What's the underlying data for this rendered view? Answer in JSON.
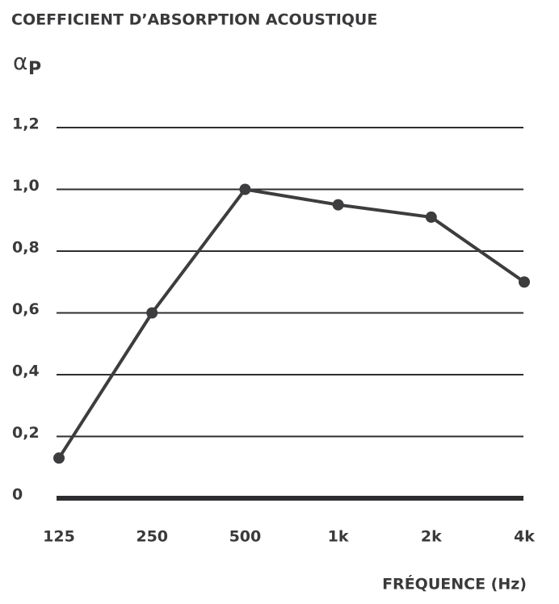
{
  "chart_data": {
    "type": "line",
    "title": "COEFFICIENT D’ABSORPTION ACOUSTIQUE",
    "ylabel": {
      "symbol": "α",
      "subscript": "P"
    },
    "xlabel": "FRÉQUENCE (Hz)",
    "categories": [
      "125",
      "250",
      "500",
      "1k",
      "2k",
      "4k"
    ],
    "series": [
      {
        "color": "#3d3d3f",
        "values": [
          0.13,
          0.6,
          1.0,
          0.95,
          0.91,
          0.7
        ]
      }
    ],
    "ylim": [
      0,
      1.2
    ],
    "yticks": [
      0,
      {
        "value": 0.2,
        "label": "0,2"
      },
      {
        "value": 0.4,
        "label": "0,4"
      },
      {
        "value": 0.6,
        "label": "0,6"
      },
      {
        "value": 0.8,
        "label": "0,8"
      },
      {
        "value": 1.0,
        "label": "1,0"
      },
      {
        "value": 1.2,
        "label": "1,2"
      }
    ],
    "grid": true
  }
}
